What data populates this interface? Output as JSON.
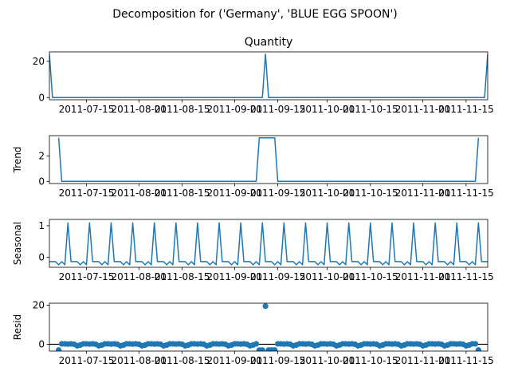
{
  "figure": {
    "suptitle": "Decomposition for ('Germany', 'BLUE EGG  SPOON')"
  },
  "chart_data": [
    {
      "type": "line",
      "id": "quantity",
      "title": "Quantity",
      "ylabel": "",
      "ylim": [
        -1.2,
        25.2
      ],
      "yticks": [
        0,
        20
      ],
      "x_start": "2011-07-03",
      "x_end": "2011-11-22",
      "xticks": [
        "2011-07-15",
        "2011-08-01",
        "2011-08-15",
        "2011-09-01",
        "2011-09-15",
        "2011-10-01",
        "2011-10-15",
        "2011-11-01",
        "2011-11-15"
      ],
      "baseline": 0,
      "spikes": [
        {
          "x": "2011-07-03",
          "y": 24
        },
        {
          "x": "2011-09-11",
          "y": 24
        },
        {
          "x": "2011-11-22",
          "y": 24
        }
      ],
      "color": "#1f77b4"
    },
    {
      "type": "line",
      "id": "trend",
      "title": "",
      "ylabel": "Trend",
      "ylim": [
        -0.17,
        3.6
      ],
      "yticks": [
        0,
        2
      ],
      "x_start": "2011-07-03",
      "x_end": "2011-11-22",
      "xticks": [
        "2011-07-15",
        "2011-08-01",
        "2011-08-15",
        "2011-09-01",
        "2011-09-15",
        "2011-10-01",
        "2011-10-15",
        "2011-11-01",
        "2011-11-15"
      ],
      "points": [
        {
          "x": "2011-07-06",
          "y": 3.43
        },
        {
          "x": "2011-07-07",
          "y": 0
        },
        {
          "x": "2011-09-08",
          "y": 0
        },
        {
          "x": "2011-09-09",
          "y": 3.43
        },
        {
          "x": "2011-09-14",
          "y": 3.43
        },
        {
          "x": "2011-09-15",
          "y": 0
        },
        {
          "x": "2011-11-18",
          "y": 0
        },
        {
          "x": "2011-11-19",
          "y": 3.43
        }
      ],
      "color": "#1f77b4"
    },
    {
      "type": "line",
      "id": "seasonal",
      "title": "",
      "ylabel": "Seasonal",
      "ylim": [
        -0.32,
        1.2
      ],
      "yticks": [
        0,
        1
      ],
      "x_start": "2011-07-03",
      "x_end": "2011-11-22",
      "xticks": [
        "2011-07-15",
        "2011-08-01",
        "2011-08-15",
        "2011-09-01",
        "2011-09-15",
        "2011-10-01",
        "2011-10-15",
        "2011-11-01",
        "2011-11-15"
      ],
      "period_days": 7,
      "weekly_pattern": [
        -0.14,
        -0.14,
        -0.14,
        -0.24,
        -0.14,
        -0.24,
        1.09
      ],
      "first_peak": "2011-07-09",
      "color": "#1f77b4"
    },
    {
      "type": "scatter",
      "id": "resid",
      "title": "",
      "ylabel": "Resid",
      "ylim": [
        -3.5,
        21.0
      ],
      "yticks": [
        0,
        20
      ],
      "x_start": "2011-07-03",
      "x_end": "2011-11-22",
      "xticks": [
        "2011-07-15",
        "2011-08-01",
        "2011-08-15",
        "2011-09-01",
        "2011-09-15",
        "2011-10-01",
        "2011-10-15",
        "2011-11-01",
        "2011-11-15"
      ],
      "zero_line": 0,
      "pattern": [
        -0.4,
        0.2,
        0.2,
        0.1,
        0.2,
        0.0,
        -0.8
      ],
      "points_range": [
        "2011-07-06",
        "2011-11-19"
      ],
      "outliers": [
        {
          "x": "2011-07-06",
          "y": -3.0
        },
        {
          "x": "2011-09-09",
          "y": -3.0
        },
        {
          "x": "2011-09-10",
          "y": -3.0
        },
        {
          "x": "2011-09-11",
          "y": 19.5
        },
        {
          "x": "2011-09-12",
          "y": -3.0
        },
        {
          "x": "2011-09-13",
          "y": -3.0
        },
        {
          "x": "2011-09-14",
          "y": -3.0
        },
        {
          "x": "2011-11-19",
          "y": -3.0
        }
      ],
      "color": "#1f77b4"
    }
  ]
}
